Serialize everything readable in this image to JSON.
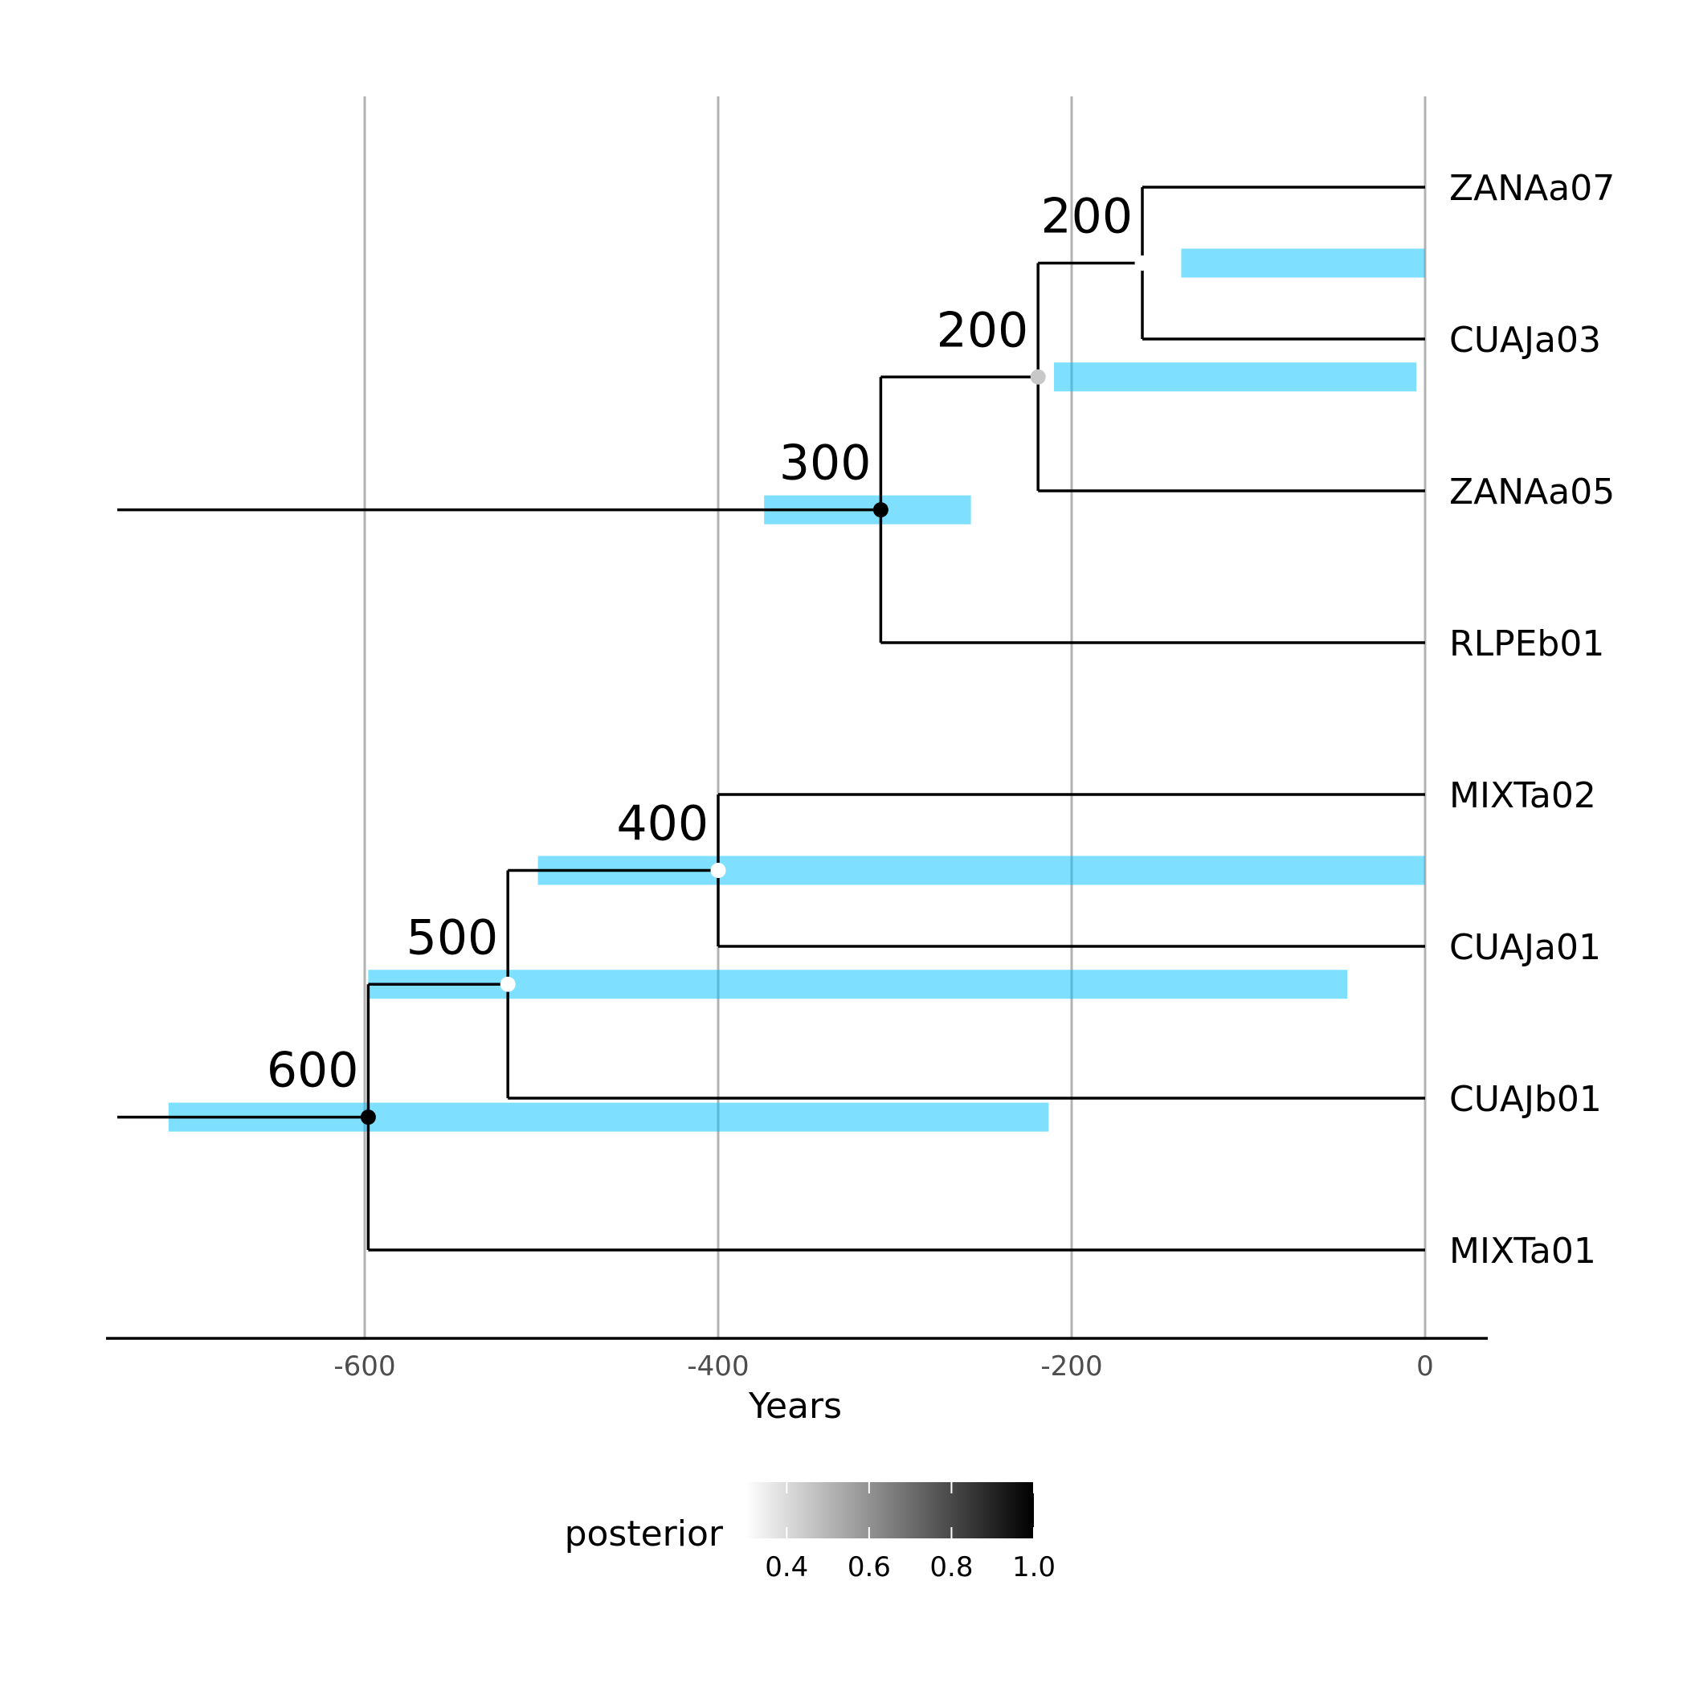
{
  "chart_data": {
    "type": "phylogenetic-tree",
    "xlabel": "Years",
    "xlim": [
      -740,
      35
    ],
    "x_ticks": [
      -600,
      -400,
      -200,
      0
    ],
    "x_tick_labels": [
      "-600",
      "-400",
      "-200",
      "0"
    ],
    "grid": "vertical major gridlines",
    "hpd_color": "#00bfff",
    "tips": [
      {
        "id": "t1",
        "label": "ZANAa07",
        "x": 0,
        "y": 8
      },
      {
        "id": "t2",
        "label": "CUAJa03",
        "x": 0,
        "y": 7
      },
      {
        "id": "t3",
        "label": "ZANAa05",
        "x": 0,
        "y": 6
      },
      {
        "id": "t4",
        "label": "RLPEb01",
        "x": 0,
        "y": 5
      },
      {
        "id": "t5",
        "label": "MIXTa02",
        "x": 0,
        "y": 4
      },
      {
        "id": "t6",
        "label": "CUAJa01",
        "x": 0,
        "y": 3
      },
      {
        "id": "t7",
        "label": "CUAJb01",
        "x": 0,
        "y": 2
      },
      {
        "id": "t8",
        "label": "MIXTa01",
        "x": 0,
        "y": 1
      }
    ],
    "nodes": [
      {
        "id": "n1",
        "x": -160,
        "children": [
          "t1",
          "t2"
        ],
        "label": "200",
        "posterior": 0.0,
        "hpd": [
          -138,
          0
        ]
      },
      {
        "id": "n2",
        "x": -219,
        "children": [
          "n1",
          "t3"
        ],
        "label": "200",
        "posterior": 0.45,
        "hpd": [
          -210,
          -5
        ]
      },
      {
        "id": "n3",
        "x": -308,
        "children": [
          "n2",
          "t4"
        ],
        "label": "300",
        "posterior": 1.0,
        "hpd": [
          -374,
          -257
        ]
      },
      {
        "id": "n4",
        "x": -400,
        "children": [
          "t5",
          "t6"
        ],
        "label": "400",
        "posterior": 0.2,
        "hpd": [
          -502,
          0
        ]
      },
      {
        "id": "n5",
        "x": -519,
        "children": [
          "n4",
          "t7"
        ],
        "label": "500",
        "posterior": 0.2,
        "hpd": [
          -598,
          -44
        ]
      },
      {
        "id": "n6",
        "x": -598,
        "children": [
          "n5",
          "t8"
        ],
        "label": "600",
        "posterior": 1.0,
        "hpd": [
          -711,
          -213
        ]
      }
    ],
    "root_stems": [
      {
        "node": "n3",
        "from_x": -740
      },
      {
        "node": "n6",
        "from_x": -740
      }
    ],
    "legend": {
      "title": "posterior",
      "placement": "bottom",
      "range": [
        0.3,
        1.0
      ],
      "ticks": [
        0.4,
        0.6,
        0.8,
        1.0
      ],
      "tick_labels": [
        "0.4",
        "0.6",
        "0.8",
        "1.0"
      ],
      "color_low": "#ffffff",
      "color_high": "#000000"
    }
  }
}
